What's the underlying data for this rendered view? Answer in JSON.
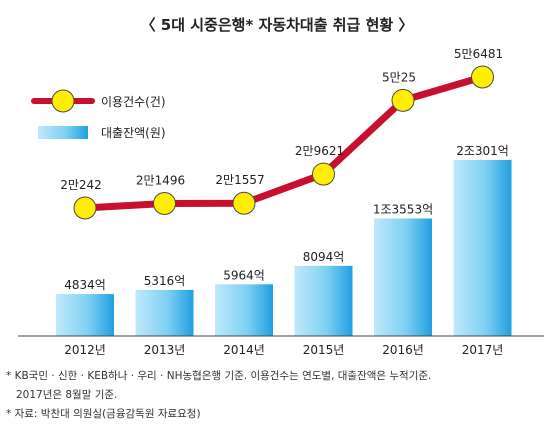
{
  "chart_data": {
    "type": "bar+line",
    "title": "〈 5대 시중은행* 자동차대출 취급 현황 〉",
    "categories": [
      "2012년",
      "2013년",
      "2014년",
      "2015년",
      "2016년",
      "2017년"
    ],
    "legend": [
      {
        "name": "이용건수(건)",
        "kind": "line-marker"
      },
      {
        "name": "대출잔액(원)",
        "kind": "bar"
      }
    ],
    "legend_position": "top-left",
    "series": [
      {
        "name": "대출잔액(원)",
        "type": "bar",
        "values": [
          4834,
          5316,
          5964,
          8094,
          13553,
          20301
        ],
        "labels": [
          "4834억",
          "5316억",
          "5964억",
          "8094억",
          "1조3553억",
          "2조301억"
        ]
      },
      {
        "name": "이용건수(건)",
        "type": "line",
        "values": [
          20242,
          21496,
          21557,
          29621,
          50025,
          56481
        ],
        "labels": [
          "2만242",
          "2만1496",
          "2만1557",
          "2만9621",
          "5만25",
          "5만6481"
        ]
      }
    ],
    "grid": false
  },
  "colors": {
    "line": "#c8102e",
    "marker_fill": "#ffee00",
    "marker_stroke": "#4a4a4a",
    "bar_light": "#bfe9fb",
    "bar_dark": "#1fa0e0",
    "axis": "#444444"
  },
  "footnotes": [
    "* KB국민 · 신한 · KEB하나 · 우리 · NH농협은행 기준. 이용건수는 연도별, 대출잔액은 누적기준.",
    "2017년은 8월말 기준.",
    "* 자료: 박찬대 의원실(금융감독원 자료요청)"
  ]
}
